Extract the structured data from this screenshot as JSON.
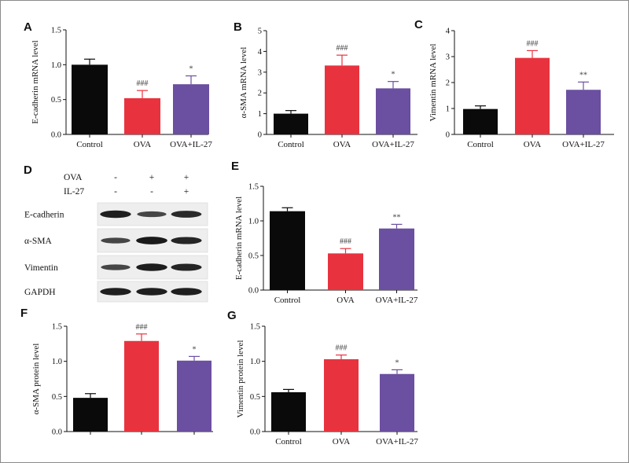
{
  "colors": {
    "control": "#0a0a0a",
    "ova": "#e8333f",
    "ova_il27": "#6b4fa0",
    "axis": "#111111",
    "frame": "#8a8a8a"
  },
  "chart_data": [
    {
      "panel": "A",
      "type": "bar",
      "categories": [
        "Control",
        "OVA",
        "OVA+IL-27"
      ],
      "values": [
        1.0,
        0.52,
        0.72
      ],
      "errors": [
        0.08,
        0.11,
        0.12
      ],
      "significance": [
        "",
        "###",
        "*"
      ],
      "ylabel": "E-cadherin mRNA level",
      "ylim": [
        0,
        1.5
      ],
      "yticks": [
        "0.0",
        "0.5",
        "1.0",
        "1.5"
      ]
    },
    {
      "panel": "B",
      "type": "bar",
      "categories": [
        "Control",
        "OVA",
        "OVA+IL-27"
      ],
      "values": [
        1.0,
        3.32,
        2.22
      ],
      "errors": [
        0.15,
        0.5,
        0.33
      ],
      "significance": [
        "",
        "###",
        "*"
      ],
      "ylabel": "α-SMA mRNA level",
      "ylim": [
        0,
        5
      ],
      "yticks": [
        "0",
        "1",
        "2",
        "3",
        "4",
        "5"
      ]
    },
    {
      "panel": "C",
      "type": "bar",
      "categories": [
        "Control",
        "OVA",
        "OVA+IL-27"
      ],
      "values": [
        0.98,
        2.95,
        1.72
      ],
      "errors": [
        0.12,
        0.28,
        0.3
      ],
      "significance": [
        "",
        "###",
        "**"
      ],
      "ylabel": "Vimentin mRNA level",
      "ylim": [
        0,
        4
      ],
      "yticks": [
        "0",
        "1",
        "2",
        "3",
        "4"
      ]
    },
    {
      "panel": "E",
      "type": "bar",
      "categories": [
        "Control",
        "OVA",
        "OVA+IL-27"
      ],
      "values": [
        1.14,
        0.53,
        0.89
      ],
      "errors": [
        0.05,
        0.07,
        0.06
      ],
      "significance": [
        "",
        "###",
        "**"
      ],
      "ylabel": "E-cadherin mRNA level",
      "ylim": [
        0,
        1.5
      ],
      "yticks": [
        "0.0",
        "0.5",
        "1.0",
        "1.5"
      ]
    },
    {
      "panel": "F",
      "type": "bar",
      "categories": [
        "",
        "",
        ""
      ],
      "values": [
        0.48,
        1.29,
        1.01
      ],
      "errors": [
        0.06,
        0.1,
        0.06
      ],
      "significance": [
        "",
        "###",
        "*"
      ],
      "ylabel": "α-SMA protein level",
      "ylim": [
        0,
        1.5
      ],
      "yticks": [
        "0.0",
        "0.5",
        "1.0",
        "1.5"
      ]
    },
    {
      "panel": "G",
      "type": "bar",
      "categories": [
        "Control",
        "OVA",
        "OVA+IL-27"
      ],
      "values": [
        0.56,
        1.03,
        0.82
      ],
      "errors": [
        0.04,
        0.06,
        0.06
      ],
      "significance": [
        "",
        "###",
        "*"
      ],
      "ylabel": "Vimentin protein level",
      "ylim": [
        0,
        1.5
      ],
      "yticks": [
        "0.0",
        "0.5",
        "1.0",
        "1.5"
      ]
    }
  ],
  "blot": {
    "letter": "D",
    "treatments": [
      {
        "name": "OVA",
        "signs": [
          "-",
          "+",
          "+"
        ]
      },
      {
        "name": "IL-27",
        "signs": [
          "-",
          "-",
          "+"
        ]
      }
    ],
    "rows": [
      {
        "name": "E-cadherin",
        "intensity": [
          0.9,
          0.55,
          0.8
        ]
      },
      {
        "name": "α-SMA",
        "intensity": [
          0.55,
          0.95,
          0.85
        ]
      },
      {
        "name": "Vimentin",
        "intensity": [
          0.55,
          0.92,
          0.85
        ]
      },
      {
        "name": "GAPDH",
        "intensity": [
          0.9,
          0.9,
          0.9
        ]
      }
    ]
  }
}
